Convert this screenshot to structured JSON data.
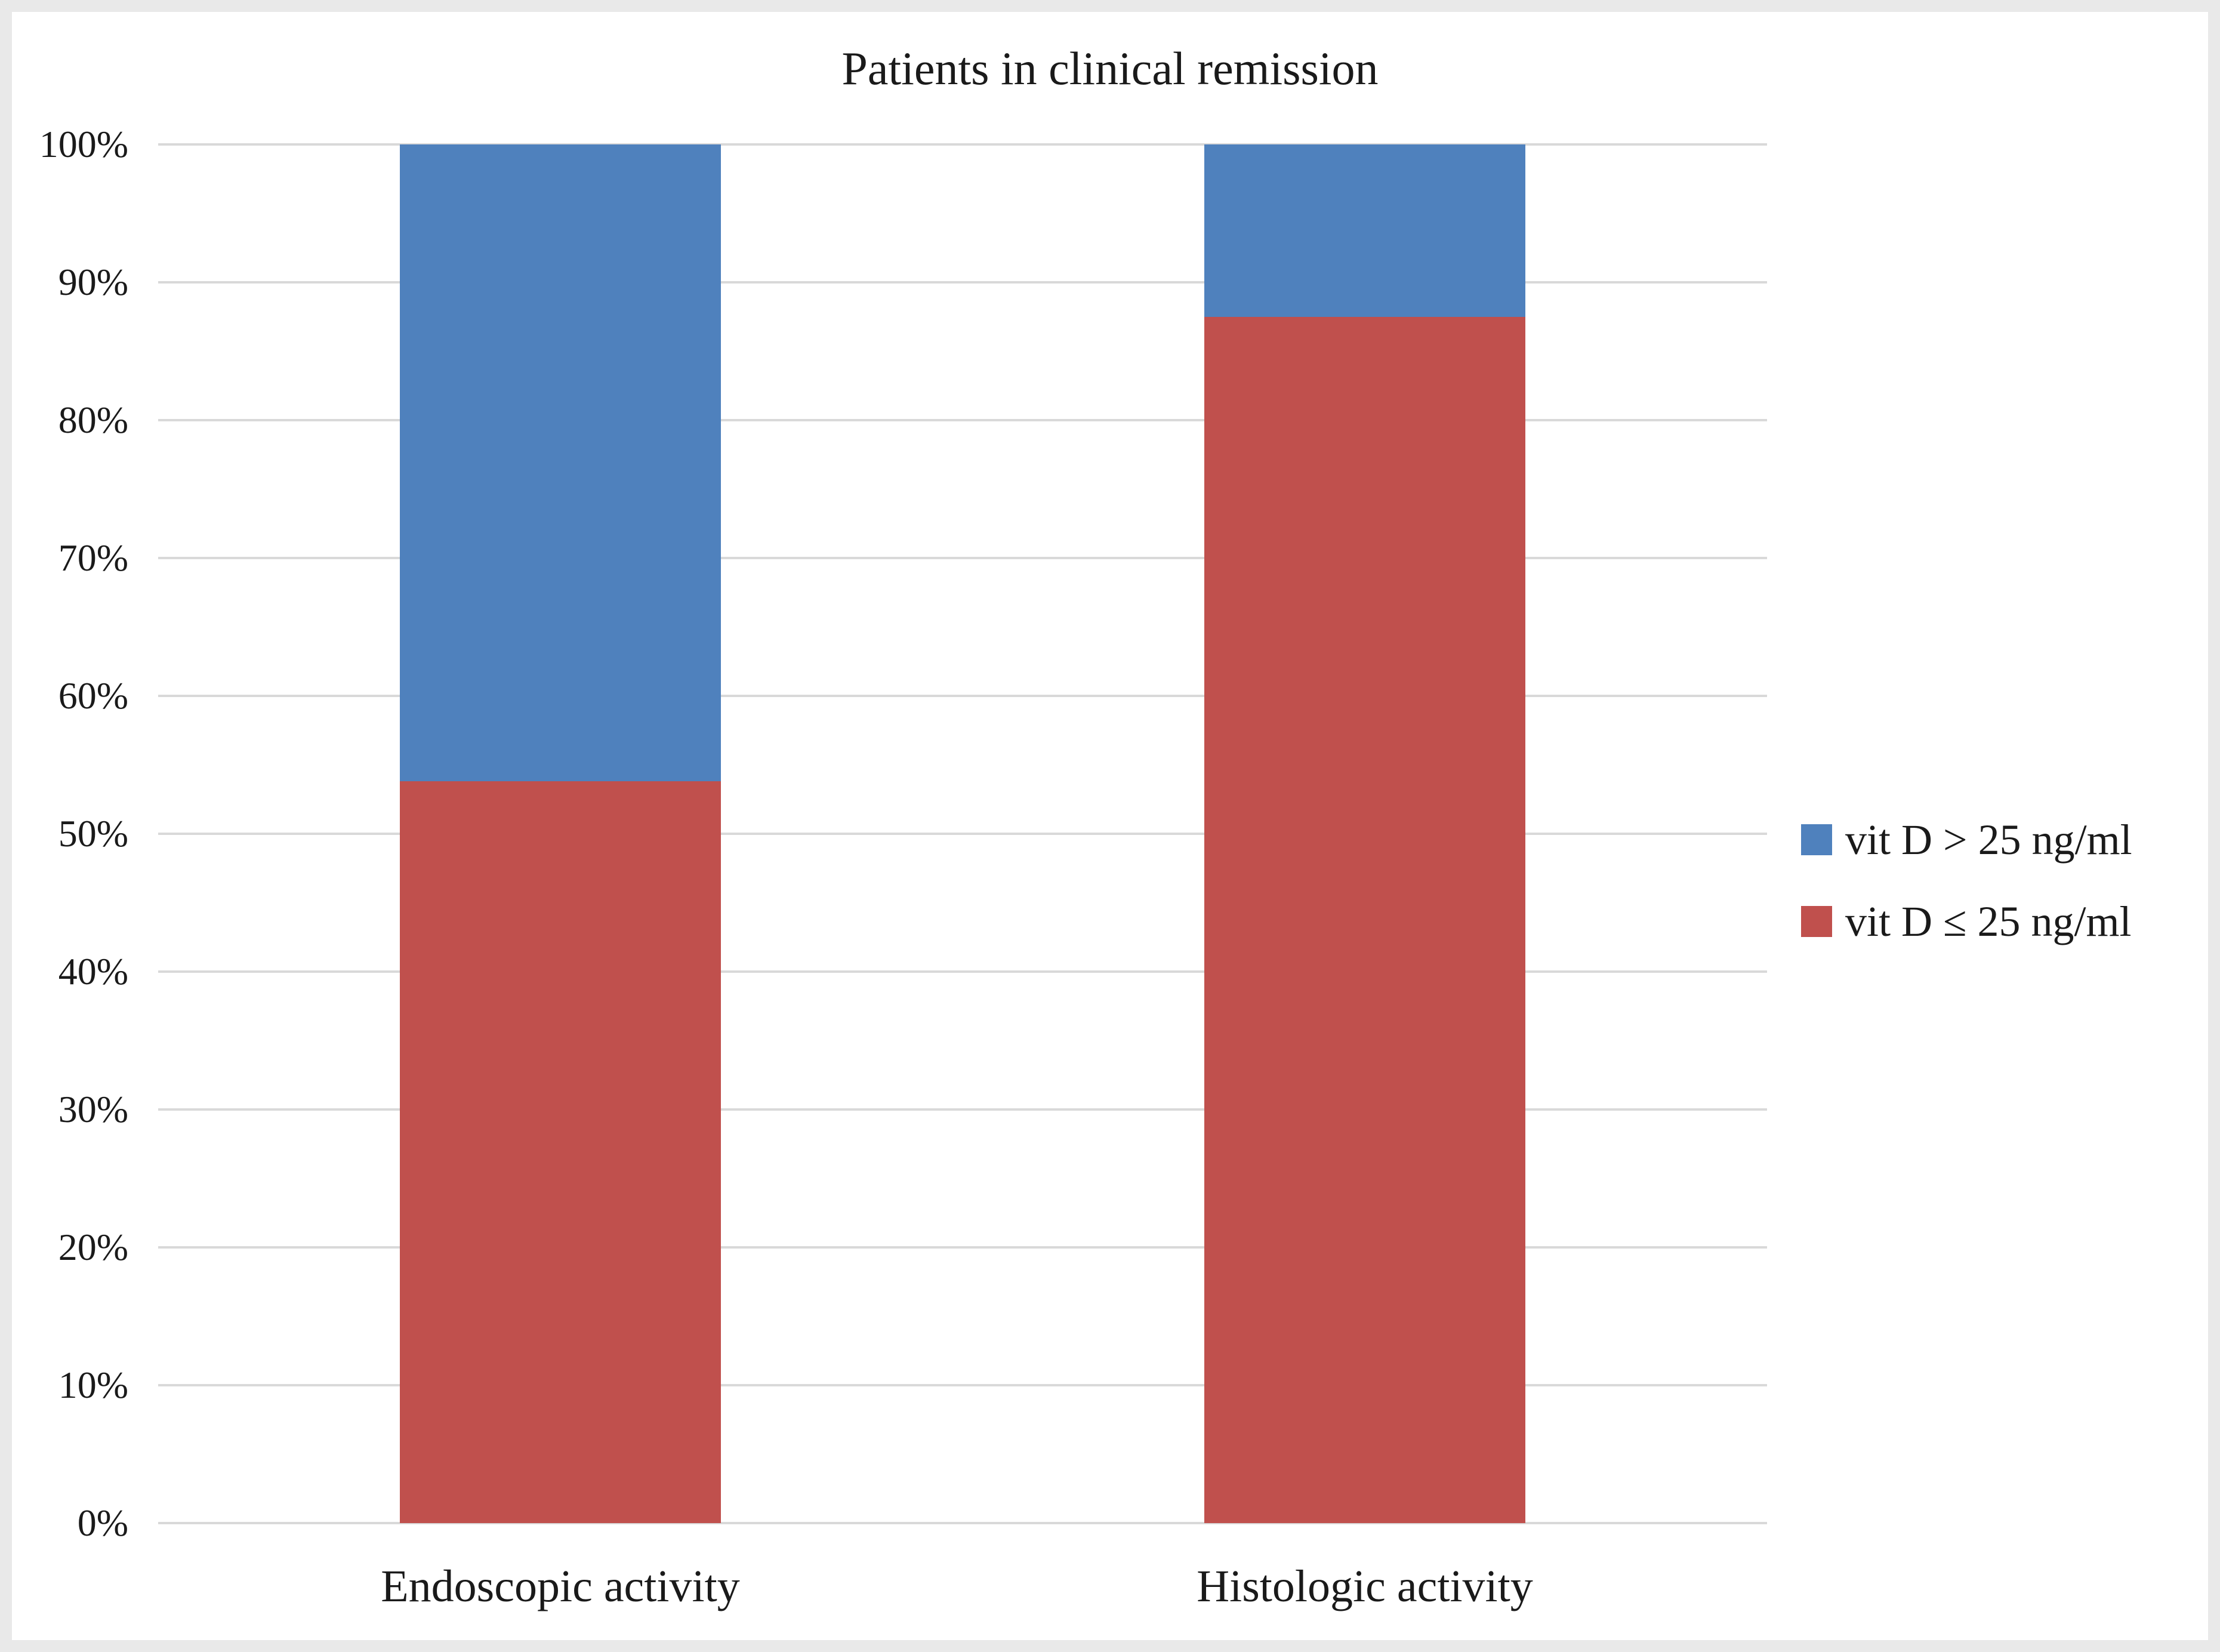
{
  "figure": {
    "background": "#ffffff",
    "border_color": "#e9e9e9",
    "text_color": "#1a1a1a",
    "gridline_color": "#d9d9d9"
  },
  "chart_data": {
    "type": "bar",
    "stacked": true,
    "title": "Patients in clinical remission",
    "xlabel": "",
    "ylabel": "",
    "categories": [
      "Endoscopic activity",
      "Histologic activity"
    ],
    "series": [
      {
        "name": "vit D > 25 ng/ml",
        "color": "#4F81BD",
        "values": [
          46.2,
          12.5
        ]
      },
      {
        "name": "vit D ≤ 25 ng/ml",
        "color": "#C0504D",
        "values": [
          53.8,
          87.5
        ]
      }
    ],
    "stack_order_bottom_up": [
      1,
      0
    ],
    "ylim": [
      0,
      100
    ],
    "yticks": [
      0,
      10,
      20,
      30,
      40,
      50,
      60,
      70,
      80,
      90,
      100
    ],
    "ytick_labels": [
      "0%",
      "10%",
      "20%",
      "30%",
      "40%",
      "50%",
      "60%",
      "70%",
      "80%",
      "90%",
      "100%"
    ],
    "grid": true,
    "legend_position": "right"
  }
}
